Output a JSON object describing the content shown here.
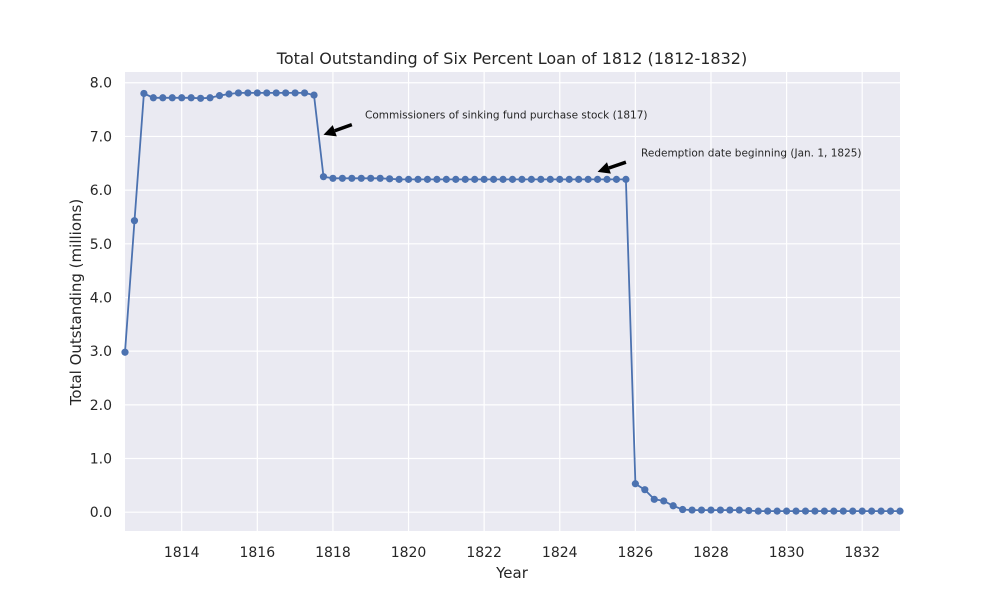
{
  "chart_data": {
    "type": "line",
    "title": "Total Outstanding of Six Percent Loan of 1812 (1812-1832)",
    "xlabel": "Year",
    "ylabel": "Total Outstanding (millions)",
    "xlim": [
      1812.5,
      1833.0
    ],
    "ylim": [
      -0.35,
      8.2
    ],
    "xticks": [
      1814,
      1816,
      1818,
      1820,
      1822,
      1824,
      1826,
      1828,
      1830,
      1832
    ],
    "xtick_labels": [
      "1814",
      "1816",
      "1818",
      "1820",
      "1822",
      "1824",
      "1826",
      "1828",
      "1830",
      "1832"
    ],
    "yticks": [
      0,
      1,
      2,
      3,
      4,
      5,
      6,
      7,
      8
    ],
    "ytick_labels": [
      "0.0",
      "1.0",
      "2.0",
      "3.0",
      "4.0",
      "5.0",
      "6.0",
      "7.0",
      "8.0"
    ],
    "grid": true,
    "legend": "none",
    "colors": {
      "background": "#eaeaf2",
      "grid": "#ffffff",
      "line": "#4c72b0",
      "text": "#262626",
      "arrow": "#000000"
    },
    "series": [
      {
        "x": [
          1812.5,
          1812.75,
          1813.0,
          1813.25,
          1813.5,
          1813.75,
          1814.0,
          1814.25,
          1814.5,
          1814.75,
          1815.0,
          1815.25,
          1815.5,
          1815.75,
          1816.0,
          1816.25,
          1816.5,
          1816.75,
          1817.0,
          1817.25,
          1817.5,
          1817.75,
          1818.0,
          1818.25,
          1818.5,
          1818.75,
          1819.0,
          1819.25,
          1819.5,
          1819.75,
          1820.0,
          1820.25,
          1820.5,
          1820.75,
          1821.0,
          1821.25,
          1821.5,
          1821.75,
          1822.0,
          1822.25,
          1822.5,
          1822.75,
          1823.0,
          1823.25,
          1823.5,
          1823.75,
          1824.0,
          1824.25,
          1824.5,
          1824.75,
          1825.0,
          1825.25,
          1825.5,
          1825.75,
          1826.0,
          1826.25,
          1826.5,
          1826.75,
          1827.0,
          1827.25,
          1827.5,
          1827.75,
          1828.0,
          1828.25,
          1828.5,
          1828.75,
          1829.0,
          1829.25,
          1829.5,
          1829.75,
          1830.0,
          1830.25,
          1830.5,
          1830.75,
          1831.0,
          1831.25,
          1831.5,
          1831.75,
          1832.0,
          1832.25,
          1832.5,
          1832.75,
          1833.0
        ],
        "y": [
          2.98,
          5.43,
          7.8,
          7.72,
          7.72,
          7.72,
          7.72,
          7.72,
          7.71,
          7.72,
          7.76,
          7.79,
          7.81,
          7.81,
          7.81,
          7.81,
          7.81,
          7.81,
          7.81,
          7.81,
          7.77,
          6.25,
          6.22,
          6.22,
          6.22,
          6.22,
          6.22,
          6.22,
          6.21,
          6.2,
          6.2,
          6.2,
          6.2,
          6.2,
          6.2,
          6.2,
          6.2,
          6.2,
          6.2,
          6.2,
          6.2,
          6.2,
          6.2,
          6.2,
          6.2,
          6.2,
          6.2,
          6.2,
          6.2,
          6.2,
          6.2,
          6.2,
          6.2,
          6.2,
          0.53,
          0.42,
          0.24,
          0.21,
          0.12,
          0.05,
          0.04,
          0.04,
          0.04,
          0.04,
          0.04,
          0.04,
          0.03,
          0.02,
          0.02,
          0.02,
          0.02,
          0.02,
          0.02,
          0.02,
          0.02,
          0.02,
          0.02,
          0.02,
          0.02,
          0.02,
          0.02,
          0.02,
          0.02
        ]
      }
    ],
    "annotations": [
      {
        "text": "Commissioners of sinking fund purchase stock (1817)",
        "x": 1818.85,
        "y": 7.33,
        "arrow_to_x": 1817.75,
        "arrow_to_y": 7.03,
        "arrow_from_x": 1818.5,
        "arrow_from_y": 7.22
      },
      {
        "text": "Redemption date beginning (Jan. 1, 1825)",
        "x": 1826.15,
        "y": 6.63,
        "arrow_to_x": 1825.0,
        "arrow_to_y": 6.34,
        "arrow_from_x": 1825.75,
        "arrow_from_y": 6.52
      }
    ]
  }
}
